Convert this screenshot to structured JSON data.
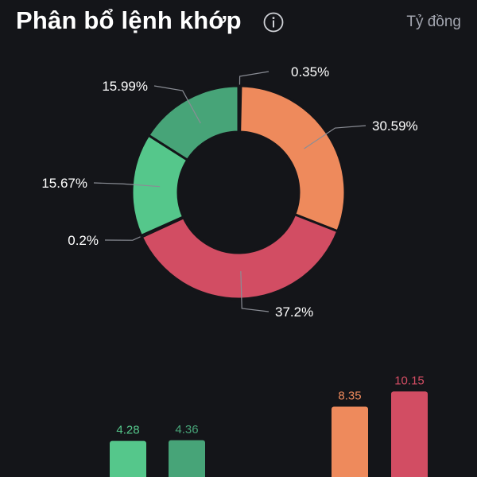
{
  "header": {
    "title": "Phân bổ lệnh khớp",
    "info_icon": "info-circle-icon",
    "unit_label": "Tỷ đồng"
  },
  "colors": {
    "background": "#141519",
    "green_light": "#55c78b",
    "green_dark": "#47a478",
    "orange": "#ee8a5c",
    "red": "#d24d63",
    "gray_yellow": "#e0e0a0"
  },
  "chart_data": [
    {
      "type": "pie",
      "variant": "donut",
      "slices": [
        {
          "label": "0.35%",
          "value": 0.35,
          "color": "#e0e0a0"
        },
        {
          "label": "30.59%",
          "value": 30.59,
          "color": "#ee8a5c"
        },
        {
          "label": "37.2%",
          "value": 37.2,
          "color": "#d24d63"
        },
        {
          "label": "0.2%",
          "value": 0.2,
          "color": "#e0e0a0"
        },
        {
          "label": "15.67%",
          "value": 15.67,
          "color": "#55c78b"
        },
        {
          "label": "15.99%",
          "value": 15.99,
          "color": "#47a478"
        }
      ]
    },
    {
      "type": "bar",
      "bars": [
        {
          "label": "4.28",
          "value": 4.28,
          "color": "#55c78b"
        },
        {
          "label": "4.36",
          "value": 4.36,
          "color": "#47a478"
        },
        {
          "label": "8.35",
          "value": 8.35,
          "color": "#ee8a5c"
        },
        {
          "label": "10.15",
          "value": 10.15,
          "color": "#d24d63"
        }
      ]
    }
  ]
}
